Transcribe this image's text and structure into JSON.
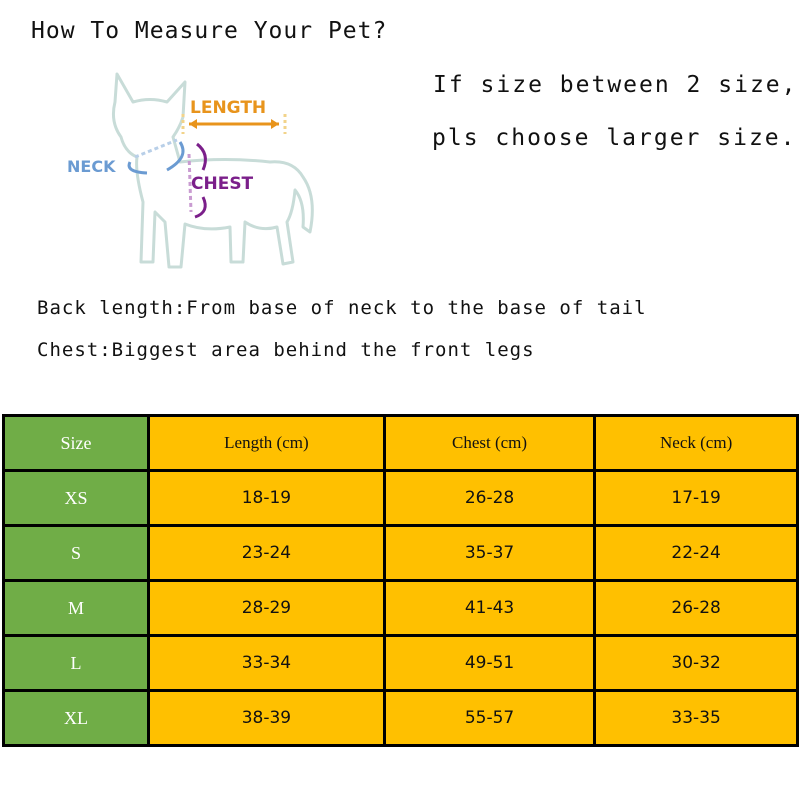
{
  "title": "How To Measure Your Pet?",
  "notes": [
    "If size between 2 size,",
    "pls choose larger size."
  ],
  "diagram": {
    "labels": {
      "length": "LENGTH",
      "neck": "NECK",
      "chest": "CHEST"
    },
    "colors": {
      "length": "#e8941c",
      "neck": "#6b9bd2",
      "chest": "#7b1f8a",
      "outline": "#c8dcd8"
    }
  },
  "definitions": [
    "Back length:From base of neck to the base of tail",
    "Chest:Biggest area behind the front legs"
  ],
  "table": {
    "headers": [
      "Size",
      "Length (cm)",
      "Chest (cm)",
      "Neck (cm)"
    ],
    "rows": [
      [
        "XS",
        "18-19",
        "26-28",
        "17-19"
      ],
      [
        "S",
        "23-24",
        "35-37",
        "22-24"
      ],
      [
        "M",
        "28-29",
        "41-43",
        "26-28"
      ],
      [
        "L",
        "33-34",
        "49-51",
        "30-32"
      ],
      [
        "XL",
        "38-39",
        "55-57",
        "33-35"
      ]
    ],
    "colors": {
      "size_column": "#70ad47",
      "value_cells": "#ffc000"
    }
  }
}
